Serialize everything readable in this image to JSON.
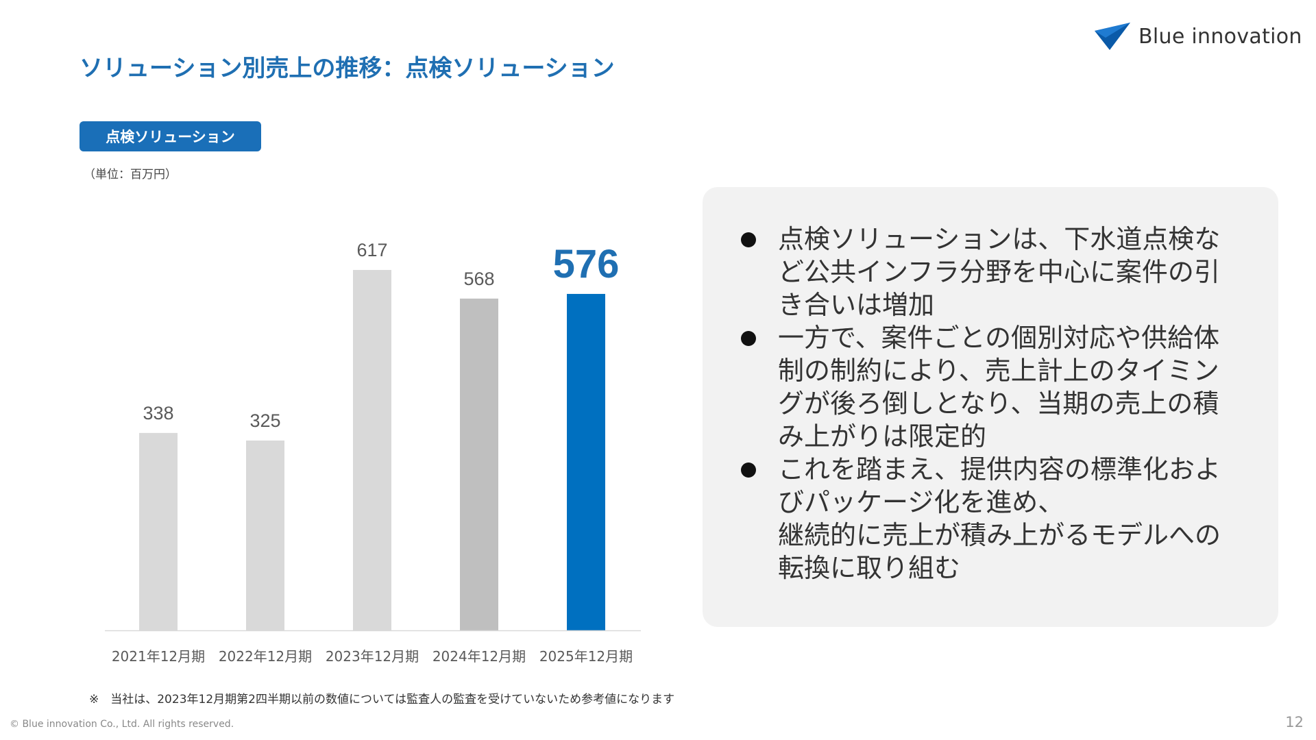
{
  "header": {
    "title": "ソリューション別売上の推移：点検ソリューション",
    "logo_text": "Blue innovation",
    "logo_icon": "paper-plane-icon"
  },
  "section": {
    "tag_label": "点検ソリューション",
    "unit_label": "（単位：百万円）"
  },
  "chart_data": {
    "type": "bar",
    "categories": [
      "2021年12月期",
      "2022年12月期",
      "2023年12月期",
      "2024年12月期",
      "2025年12月期"
    ],
    "values": [
      338,
      325,
      617,
      568,
      576
    ],
    "value_labels": [
      "338",
      "325",
      "617",
      "568",
      "576"
    ],
    "highlight_index": 4,
    "ylim": [
      0,
      617
    ],
    "grid": false,
    "legend": "none",
    "colors": {
      "bars": [
        "#d9d9d9",
        "#d9d9d9",
        "#d9d9d9",
        "#bfbfbf",
        "#0070c0"
      ],
      "highlight_label": "#1f6fb2",
      "label": "#595959",
      "axis": "#d9d9d9"
    }
  },
  "info_box": {
    "bullets": [
      "点検ソリューションは、下水道点検な\nど公共インフラ分野を中心に案件の引\nき合いは増加",
      "一方で、案件ごとの個別対応や供給体\n制の制約により、売上計上のタイミン\nグが後ろ倒しとなり、当期の売上の積\nみ上がりは限定的",
      "これを踏まえ、提供内容の標準化およ\nびパッケージ化を進め、\n継続的に売上が積み上がるモデルへの\n転換に取り組む"
    ]
  },
  "footer": {
    "note": "※　当社は、2023年12月期第2四半期以前の数値については監査人の監査を受けていないため参考値になります",
    "copyright": "© Blue innovation Co., Ltd. All rights reserved.",
    "page_number": "12"
  }
}
